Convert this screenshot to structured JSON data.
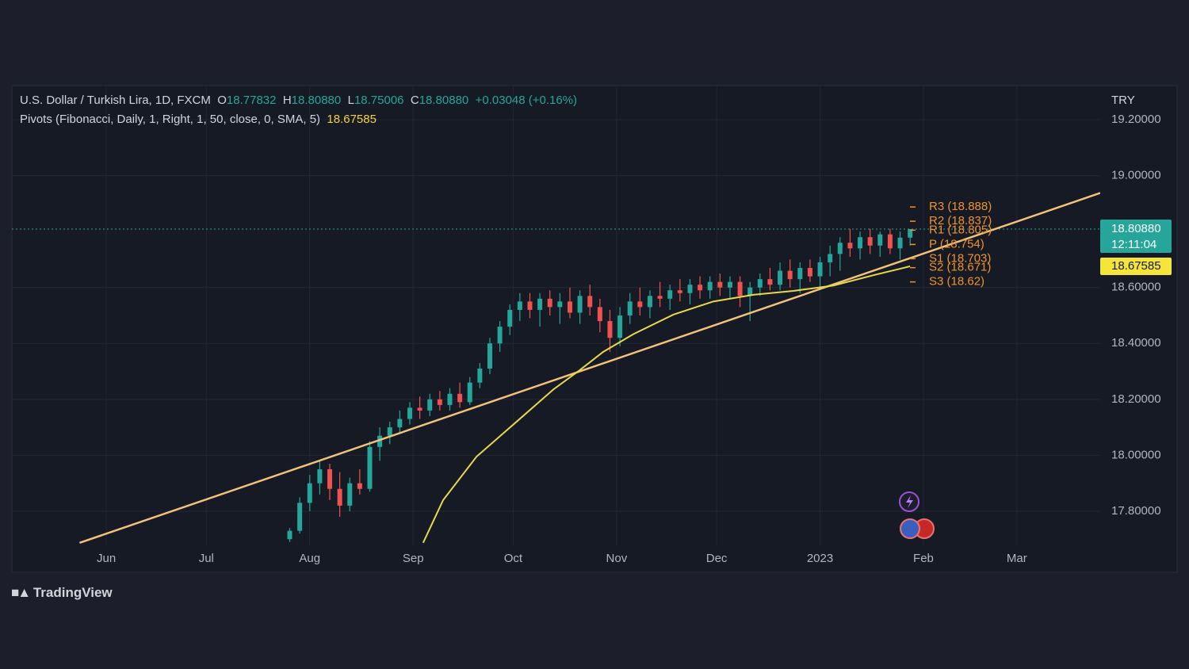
{
  "chart_data": {
    "type": "candlestick",
    "title": "U.S. Dollar / Turkish Lira, 1D, FXCM",
    "ohlc_legend": [
      {
        "label": "O",
        "text": "18.77832"
      },
      {
        "label": "H",
        "text": "18.80880"
      },
      {
        "label": "L",
        "text": "18.75006"
      },
      {
        "label": "C",
        "text": "18.80880"
      }
    ],
    "change": "+0.03048 (+0.16%)",
    "indicator": "Pivots (Fibonacci, Daily, 1, Right, 1, 50, close, 0, SMA, 5)",
    "indicator_value": "18.67585",
    "currency": "TRY",
    "last_price_label": "18.80880",
    "countdown": "12:11:04",
    "up_color": "#26a69a",
    "down_color": "#ef5350",
    "x": [
      55,
      58,
      61,
      64,
      67,
      70,
      73,
      76,
      79,
      82,
      85,
      88,
      91,
      94,
      97,
      100,
      103,
      106,
      109,
      112,
      115,
      118,
      121,
      124,
      127,
      130,
      133,
      136,
      139,
      142,
      145,
      148,
      151,
      154,
      157,
      160,
      163,
      166,
      169,
      172,
      175,
      178,
      181,
      184,
      187,
      190,
      193,
      196,
      199,
      202,
      205,
      208,
      211,
      214,
      217,
      220,
      223,
      226,
      229,
      232,
      235,
      238,
      241
    ],
    "open": [
      17.7,
      17.73,
      17.83,
      17.9,
      17.95,
      17.88,
      17.82,
      17.9,
      17.88,
      18.03,
      18.07,
      18.1,
      18.13,
      18.17,
      18.16,
      18.2,
      18.18,
      18.22,
      18.19,
      18.26,
      18.31,
      18.4,
      18.46,
      18.52,
      18.55,
      18.52,
      18.56,
      18.53,
      18.55,
      18.51,
      18.57,
      18.53,
      18.48,
      18.42,
      18.5,
      18.55,
      18.53,
      18.57,
      18.56,
      18.59,
      18.58,
      18.61,
      18.59,
      18.62,
      18.6,
      18.62,
      18.57,
      18.6,
      18.63,
      18.61,
      18.66,
      18.63,
      18.67,
      18.64,
      18.69,
      18.72,
      18.76,
      18.74,
      18.78,
      18.75,
      18.79,
      18.74,
      18.77832
    ],
    "high": [
      17.74,
      17.85,
      17.93,
      17.98,
      17.97,
      17.94,
      17.92,
      17.95,
      18.05,
      18.1,
      18.12,
      18.16,
      18.19,
      18.21,
      18.22,
      18.23,
      18.24,
      18.26,
      18.28,
      18.33,
      18.42,
      18.48,
      18.54,
      18.58,
      18.58,
      18.58,
      18.59,
      18.58,
      18.6,
      18.59,
      18.61,
      18.56,
      18.52,
      18.53,
      18.58,
      18.6,
      18.59,
      18.62,
      18.61,
      18.63,
      18.63,
      18.64,
      18.64,
      18.65,
      18.64,
      18.64,
      18.62,
      18.65,
      18.67,
      18.69,
      18.7,
      18.69,
      18.7,
      18.71,
      18.75,
      18.78,
      18.81,
      18.8,
      18.81,
      18.8,
      18.81,
      18.8,
      18.8088
    ],
    "low": [
      17.69,
      17.72,
      17.8,
      17.86,
      17.84,
      17.78,
      17.8,
      17.86,
      17.87,
      17.98,
      18.04,
      18.08,
      18.11,
      18.13,
      18.14,
      18.16,
      18.16,
      18.17,
      18.18,
      18.24,
      18.29,
      18.37,
      18.43,
      18.48,
      18.49,
      18.46,
      18.5,
      18.47,
      18.49,
      18.47,
      18.5,
      18.44,
      18.37,
      18.39,
      18.47,
      18.5,
      18.49,
      18.53,
      18.52,
      18.55,
      18.54,
      18.56,
      18.56,
      18.57,
      18.56,
      18.53,
      18.48,
      18.57,
      18.59,
      18.59,
      18.6,
      18.58,
      18.62,
      18.6,
      18.64,
      18.66,
      18.71,
      18.7,
      18.72,
      18.71,
      18.72,
      18.7,
      18.75006
    ],
    "close": [
      17.73,
      17.83,
      17.9,
      17.95,
      17.88,
      17.82,
      17.9,
      17.88,
      18.03,
      18.07,
      18.1,
      18.13,
      18.17,
      18.16,
      18.2,
      18.18,
      18.22,
      18.19,
      18.26,
      18.31,
      18.4,
      18.46,
      18.52,
      18.55,
      18.52,
      18.56,
      18.53,
      18.55,
      18.51,
      18.57,
      18.53,
      18.48,
      18.42,
      18.5,
      18.55,
      18.53,
      18.57,
      18.56,
      18.59,
      18.58,
      18.61,
      18.59,
      18.62,
      18.6,
      18.62,
      18.57,
      18.6,
      18.63,
      18.61,
      18.66,
      18.63,
      18.67,
      18.64,
      18.69,
      18.72,
      18.76,
      18.74,
      18.78,
      18.75,
      18.79,
      18.74,
      18.77832,
      18.8088
    ],
    "sma": {
      "color": "#e8d84a",
      "x": [
        95,
        101,
        111,
        123,
        134,
        142,
        149,
        158,
        170,
        182,
        194,
        206,
        218,
        230,
        241
      ],
      "values": [
        17.687,
        17.84,
        17.995,
        18.12,
        18.235,
        18.305,
        18.37,
        18.433,
        18.503,
        18.55,
        18.574,
        18.588,
        18.607,
        18.644,
        18.67585
      ]
    },
    "trendline": {
      "color": "#f0c27a",
      "x": [
        -8,
        298
      ],
      "values": [
        17.687,
        18.938
      ]
    },
    "pivot_color": "#f0922b",
    "pivots": [
      {
        "value": 18.888,
        "label": "R3 (18.888)"
      },
      {
        "value": 18.837,
        "label": "R2 (18.837)"
      },
      {
        "value": 18.805,
        "label": "R1 (18.805)"
      },
      {
        "value": 18.754,
        "label": "P (18.754)"
      },
      {
        "value": 18.703,
        "label": "S1 (18.703)"
      },
      {
        "value": 18.671,
        "label": "S2 (18.671)"
      },
      {
        "value": 18.62,
        "label": "S3 (18.62)"
      }
    ],
    "xlim": [
      -28.3,
      298
    ],
    "ylim": [
      17.678,
      19.322
    ],
    "xticks": [
      {
        "value": 0,
        "label": "Jun"
      },
      {
        "value": 30,
        "label": "Jul"
      },
      {
        "value": 61,
        "label": "Aug"
      },
      {
        "value": 92,
        "label": "Sep"
      },
      {
        "value": 122,
        "label": "Oct"
      },
      {
        "value": 153,
        "label": "Nov"
      },
      {
        "value": 183,
        "label": "Dec"
      },
      {
        "value": 214,
        "label": "2023"
      },
      {
        "value": 245,
        "label": "Feb"
      },
      {
        "value": 273,
        "label": "Mar"
      }
    ],
    "yticks": [
      {
        "value": 17.8,
        "label": "17.80000"
      },
      {
        "value": 18.0,
        "label": "18.00000"
      },
      {
        "value": 18.2,
        "label": "18.20000"
      },
      {
        "value": 18.4,
        "label": "18.40000"
      },
      {
        "value": 18.6,
        "label": "18.60000"
      },
      {
        "value": 19.0,
        "label": "19.00000"
      },
      {
        "value": 19.2,
        "label": "19.20000"
      }
    ],
    "grid": true
  },
  "brand": "TradingView"
}
